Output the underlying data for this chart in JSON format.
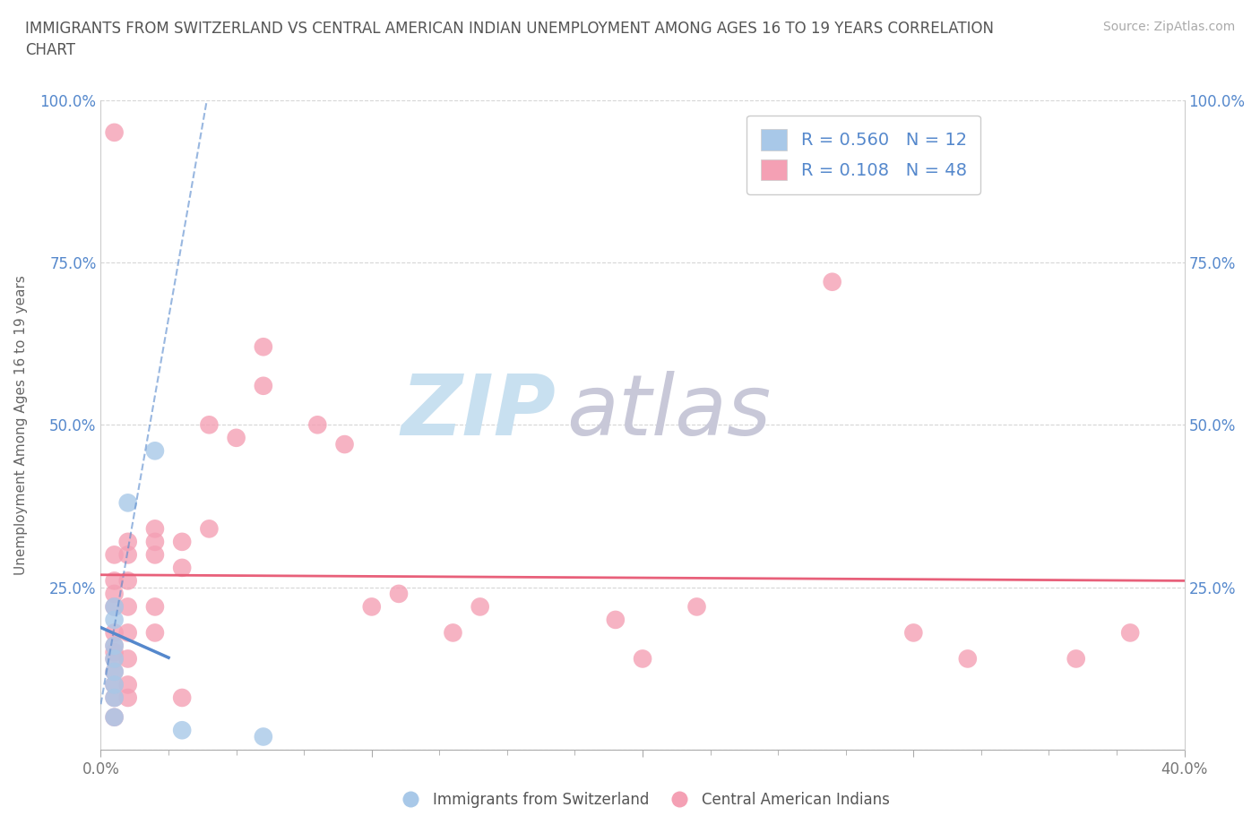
{
  "title": "IMMIGRANTS FROM SWITZERLAND VS CENTRAL AMERICAN INDIAN UNEMPLOYMENT AMONG AGES 16 TO 19 YEARS CORRELATION\nCHART",
  "source": "Source: ZipAtlas.com",
  "ylabel": "Unemployment Among Ages 16 to 19 years",
  "xlim": [
    0.0,
    0.4
  ],
  "ylim": [
    0.0,
    1.0
  ],
  "swiss_R": 0.56,
  "swiss_N": 12,
  "ca_indian_R": 0.108,
  "ca_indian_N": 48,
  "swiss_color": "#a8c8e8",
  "ca_indian_color": "#f4a0b4",
  "swiss_line_color": "#5588cc",
  "ca_indian_line_color": "#e8607a",
  "text_color": "#5588cc",
  "watermark_zip_color": "#c8e0f0",
  "watermark_atlas_color": "#c8c8d8",
  "swiss_scatter": [
    [
      0.005,
      0.05
    ],
    [
      0.005,
      0.08
    ],
    [
      0.005,
      0.1
    ],
    [
      0.005,
      0.12
    ],
    [
      0.005,
      0.14
    ],
    [
      0.005,
      0.16
    ],
    [
      0.005,
      0.2
    ],
    [
      0.005,
      0.22
    ],
    [
      0.01,
      0.38
    ],
    [
      0.02,
      0.46
    ],
    [
      0.03,
      0.03
    ],
    [
      0.06,
      0.02
    ]
  ],
  "ca_indian_scatter": [
    [
      0.005,
      0.05
    ],
    [
      0.005,
      0.08
    ],
    [
      0.005,
      0.1
    ],
    [
      0.005,
      0.12
    ],
    [
      0.005,
      0.14
    ],
    [
      0.005,
      0.16
    ],
    [
      0.005,
      0.18
    ],
    [
      0.005,
      0.22
    ],
    [
      0.005,
      0.26
    ],
    [
      0.005,
      0.3
    ],
    [
      0.01,
      0.1
    ],
    [
      0.01,
      0.14
    ],
    [
      0.01,
      0.18
    ],
    [
      0.01,
      0.22
    ],
    [
      0.01,
      0.26
    ],
    [
      0.01,
      0.3
    ],
    [
      0.01,
      0.32
    ],
    [
      0.02,
      0.3
    ],
    [
      0.02,
      0.32
    ],
    [
      0.02,
      0.34
    ],
    [
      0.02,
      0.18
    ],
    [
      0.02,
      0.22
    ],
    [
      0.03,
      0.28
    ],
    [
      0.03,
      0.32
    ],
    [
      0.04,
      0.34
    ],
    [
      0.04,
      0.5
    ],
    [
      0.05,
      0.48
    ],
    [
      0.06,
      0.56
    ],
    [
      0.06,
      0.62
    ],
    [
      0.08,
      0.5
    ],
    [
      0.09,
      0.47
    ],
    [
      0.1,
      0.22
    ],
    [
      0.11,
      0.24
    ],
    [
      0.13,
      0.18
    ],
    [
      0.14,
      0.22
    ],
    [
      0.19,
      0.2
    ],
    [
      0.2,
      0.14
    ],
    [
      0.22,
      0.22
    ],
    [
      0.27,
      0.72
    ],
    [
      0.3,
      0.18
    ],
    [
      0.32,
      0.14
    ],
    [
      0.36,
      0.14
    ],
    [
      0.38,
      0.18
    ],
    [
      0.005,
      0.95
    ],
    [
      0.005,
      0.15
    ],
    [
      0.005,
      0.24
    ],
    [
      0.01,
      0.08
    ],
    [
      0.03,
      0.08
    ]
  ]
}
